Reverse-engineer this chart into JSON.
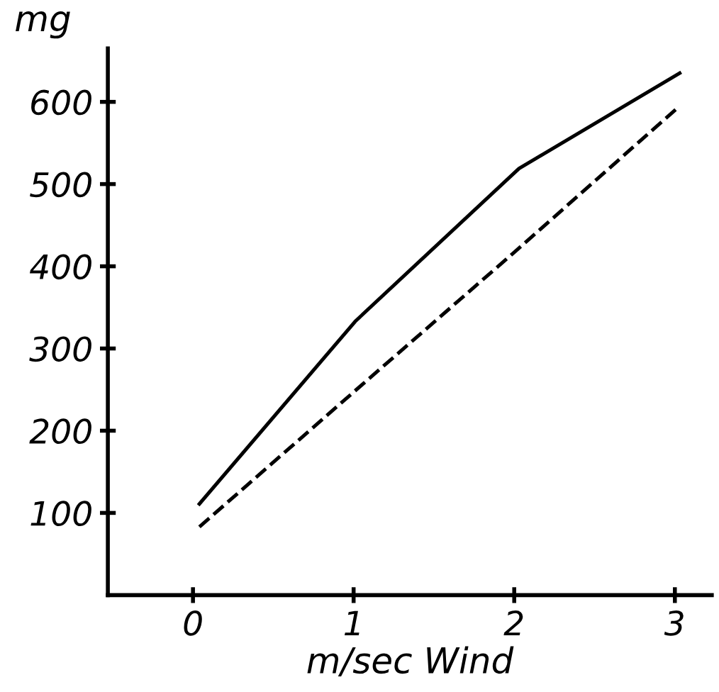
{
  "chart_data": {
    "type": "line",
    "ylabel": "mg",
    "xlabel": "m/sec Wind",
    "xlim": [
      -0.53,
      3.23
    ],
    "xticks": [
      0,
      1,
      2,
      3
    ],
    "ylim": [
      0,
      665
    ],
    "yticks": [
      100,
      200,
      300,
      400,
      500,
      600
    ],
    "grid": false,
    "legend": false,
    "marker": "none",
    "series": [
      {
        "color": "#000000",
        "line_style": "solid",
        "x": [
          0.04,
          1.01,
          2.03,
          3.03
        ],
        "values": [
          111,
          333,
          519,
          635
        ]
      },
      {
        "color": "#000000",
        "line_style": "dashed",
        "x": [
          0.04,
          1.0,
          2.0,
          3.03
        ],
        "values": [
          83,
          247,
          417,
          595
        ]
      }
    ]
  }
}
